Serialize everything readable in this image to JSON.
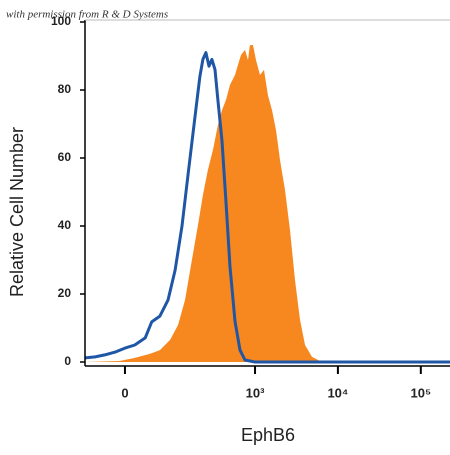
{
  "chart_data": {
    "type": "histogram_overlay",
    "watermark": "with permission from R & D Systems",
    "ylabel": "Relative Cell Number",
    "xlabel": "EphB6",
    "xscale": "biexponential",
    "linear_width": 54,
    "xlim": [
      -73,
      225000
    ],
    "ylim": [
      0,
      100
    ],
    "yticks": [
      0,
      20,
      40,
      60,
      80,
      100
    ],
    "xticks": [
      0,
      {
        "value": 1000,
        "label": "10³"
      },
      {
        "value": 10000,
        "label": "10⁴"
      },
      {
        "value": 100000,
        "label": "10⁵"
      }
    ],
    "series": [
      {
        "color": "#f7871f",
        "style": "fill",
        "x": [
          -73,
          -8,
          15,
          41,
          61,
          87,
          112,
          138,
          169,
          202,
          232,
          268,
          309,
          355,
          398,
          445,
          498,
          572,
          622,
          677,
          756,
          822,
          868,
          945,
          1027,
          1150,
          1282,
          1430,
          1603,
          1792,
          2003,
          2300,
          2640,
          3035,
          3488,
          4007,
          4865,
          6080,
          9225,
          225000
        ],
        "values": [
          0,
          0.3,
          1.2,
          2.4,
          3.5,
          6.5,
          10.9,
          18.2,
          30,
          40.3,
          49.1,
          56.5,
          62.4,
          69.7,
          74.1,
          77.1,
          81.5,
          84.4,
          87.4,
          90.3,
          91.8,
          88.8,
          93.2,
          93.2,
          88.8,
          84.4,
          85.9,
          78.5,
          74.1,
          68.2,
          59.4,
          50.6,
          38.8,
          24.1,
          12.4,
          5,
          1.5,
          0.3,
          0,
          0
        ]
      },
      {
        "color": "#1f57a6",
        "style": "line",
        "x": [
          -73,
          -50,
          -32,
          -15,
          0,
          15,
          32,
          44,
          61,
          81,
          102,
          126,
          151,
          174,
          196,
          213,
          232,
          253,
          276,
          300,
          327,
          355,
          398,
          445,
          498,
          572,
          659,
          756,
          1000,
          225000
        ],
        "values": [
          1.2,
          1.5,
          2.1,
          2.9,
          4.1,
          5,
          7.1,
          11.8,
          13.5,
          18.2,
          27,
          40,
          55,
          67,
          77,
          84,
          89,
          91,
          87,
          89,
          86,
          77,
          65,
          47,
          28,
          12,
          3.5,
          0.6,
          0,
          0
        ]
      }
    ]
  }
}
